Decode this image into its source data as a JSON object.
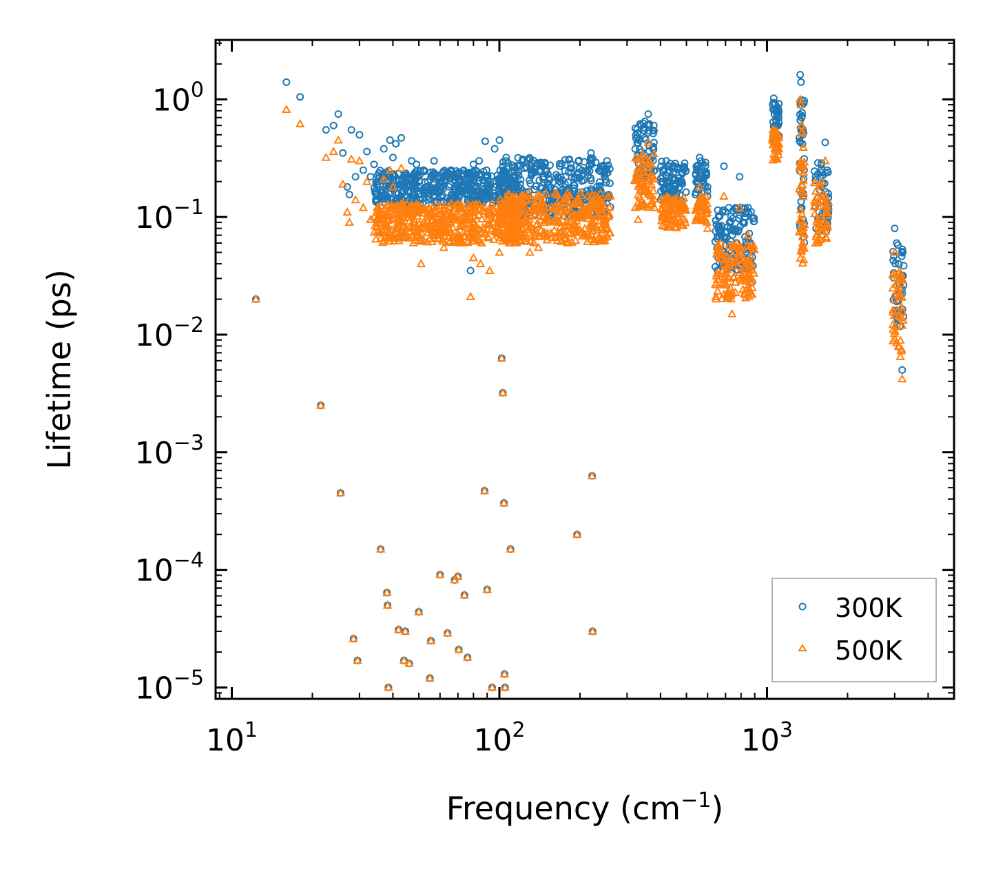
{
  "chart_data": {
    "type": "scatter",
    "xscale": "log",
    "yscale": "log",
    "xlabel": "Frequency (cm",
    "xlabel_sup": "−1",
    "xlabel_close": ")",
    "ylabel": "Lifetime (ps)",
    "xlim": [
      8.7,
      5000
    ],
    "ylim": [
      8e-06,
      3.2
    ],
    "x_ticks": [
      {
        "value": 10,
        "base": "10",
        "exp": "1"
      },
      {
        "value": 100,
        "base": "10",
        "exp": "2"
      },
      {
        "value": 1000,
        "base": "10",
        "exp": "3"
      }
    ],
    "y_ticks": [
      {
        "value": 1,
        "base": "10",
        "exp": "0"
      },
      {
        "value": 0.1,
        "base": "10",
        "exp": "−1"
      },
      {
        "value": 0.01,
        "base": "10",
        "exp": "−2"
      },
      {
        "value": 0.001,
        "base": "10",
        "exp": "−3"
      },
      {
        "value": 0.0001,
        "base": "10",
        "exp": "−4"
      },
      {
        "value": 1e-05,
        "base": "10",
        "exp": "−5"
      }
    ],
    "legend_position": "bottom-right",
    "series": [
      {
        "name": "300K",
        "marker": "circle",
        "color": "#1f77b4",
        "points": [
          [
            12.3,
            0.02
          ],
          [
            16,
            1.4
          ],
          [
            18,
            1.05
          ],
          [
            21.5,
            0.0025
          ],
          [
            22.5,
            0.55
          ],
          [
            24,
            0.6
          ],
          [
            25,
            0.75
          ],
          [
            25.5,
            0.00045
          ],
          [
            26,
            0.35
          ],
          [
            27,
            0.18
          ],
          [
            27.5,
            0.155
          ],
          [
            28,
            0.55
          ],
          [
            28.5,
            2.6e-05
          ],
          [
            29,
            0.22
          ],
          [
            29.5,
            1.7e-05
          ],
          [
            30,
            0.5
          ],
          [
            31,
            0.25
          ],
          [
            32,
            0.36
          ],
          [
            33,
            0.22
          ],
          [
            34,
            0.28
          ],
          [
            35,
            0.2
          ],
          [
            36,
            0.00015
          ],
          [
            36.5,
            0.17
          ],
          [
            37,
            0.38
          ],
          [
            38,
            6.4e-05
          ],
          [
            38.2,
            5e-05
          ],
          [
            38.5,
            1e-05
          ],
          [
            39,
            0.45
          ],
          [
            40,
            0.32
          ],
          [
            41,
            0.42
          ],
          [
            42,
            3.1e-05
          ],
          [
            43,
            0.47
          ],
          [
            44,
            1.7e-05
          ],
          [
            44.5,
            3e-05
          ],
          [
            46,
            1.6e-05
          ],
          [
            47,
            0.3
          ],
          [
            49,
            0.28
          ],
          [
            50,
            4.4e-05
          ],
          [
            52,
            0.25
          ],
          [
            55,
            1.2e-05
          ],
          [
            55.5,
            2.5e-05
          ],
          [
            57,
            0.3
          ],
          [
            60,
            9.1e-05
          ],
          [
            60.5,
            0.15
          ],
          [
            63,
            0.23
          ],
          [
            64,
            2.9e-05
          ],
          [
            66,
            0.25
          ],
          [
            68,
            8.2e-05
          ],
          [
            70,
            8.8e-05
          ],
          [
            70.5,
            2.1e-05
          ],
          [
            72,
            0.2
          ],
          [
            74,
            6.1e-05
          ],
          [
            76,
            1.8e-05
          ],
          [
            78,
            0.035
          ],
          [
            80,
            0.28
          ],
          [
            84,
            0.3
          ],
          [
            88,
            0.00047
          ],
          [
            88.5,
            0.44
          ],
          [
            90,
            6.8e-05
          ],
          [
            94,
            1e-05
          ],
          [
            96,
            0.38
          ],
          [
            100,
            0.45
          ],
          [
            102,
            0.0063
          ],
          [
            103,
            0.0032
          ],
          [
            104,
            0.00037
          ],
          [
            104.5,
            1.3e-05
          ],
          [
            105,
            1e-05
          ],
          [
            106,
            0.32
          ],
          [
            110,
            0.00015
          ],
          [
            130,
            0.12
          ],
          [
            150,
            0.25
          ],
          [
            195,
            0.0002
          ],
          [
            220,
            0.35
          ],
          [
            222,
            0.00063
          ],
          [
            223,
            3e-05
          ],
          [
            330,
            0.33
          ],
          [
            340,
            0.6
          ],
          [
            350,
            0.65
          ],
          [
            360,
            0.75
          ],
          [
            380,
            0.25
          ],
          [
            420,
            0.3
          ],
          [
            480,
            0.2
          ],
          [
            560,
            0.32
          ],
          [
            600,
            0.18
          ],
          [
            690,
            0.27
          ],
          [
            720,
            0.12
          ],
          [
            790,
            0.22
          ],
          [
            850,
            0.12
          ],
          [
            880,
            0.028
          ],
          [
            1050,
            0.9
          ],
          [
            1060,
            1.02
          ],
          [
            1100,
            0.6
          ],
          [
            1330,
            1.62
          ],
          [
            1340,
            1.4
          ],
          [
            1350,
            0.9
          ],
          [
            1360,
            0.5
          ],
          [
            1520,
            0.22
          ],
          [
            1600,
            0.18
          ],
          [
            1650,
            0.43
          ],
          [
            1680,
            0.25
          ],
          [
            3000,
            0.08
          ],
          [
            3050,
            0.06
          ],
          [
            3100,
            0.04
          ],
          [
            3150,
            0.025
          ],
          [
            3200,
            0.005
          ]
        ],
        "bands": [
          {
            "x": [
              34,
              115
            ],
            "y": [
              0.13,
              0.25
            ]
          },
          {
            "x": [
              100,
              260
            ],
            "y": [
              0.1,
              0.32
            ]
          },
          {
            "x": [
              320,
              380
            ],
            "y": [
              0.22,
              0.65
            ]
          },
          {
            "x": [
              400,
              500
            ],
            "y": [
              0.13,
              0.3
            ]
          },
          {
            "x": [
              540,
              600
            ],
            "y": [
              0.14,
              0.3
            ]
          },
          {
            "x": [
              640,
              900
            ],
            "y": [
              0.035,
              0.12
            ]
          },
          {
            "x": [
              1050,
              1110
            ],
            "y": [
              0.45,
              0.95
            ]
          },
          {
            "x": [
              1320,
              1380
            ],
            "y": [
              0.06,
              1.0
            ]
          },
          {
            "x": [
              1500,
              1700
            ],
            "y": [
              0.07,
              0.3
            ]
          },
          {
            "x": [
              2950,
              3250
            ],
            "y": [
              0.01,
              0.06
            ]
          }
        ]
      },
      {
        "name": "500K",
        "marker": "triangle",
        "color": "#ff7f0e",
        "points": [
          [
            12.3,
            0.02
          ],
          [
            16,
            0.82
          ],
          [
            18,
            0.62
          ],
          [
            21.5,
            0.0025
          ],
          [
            22.5,
            0.32
          ],
          [
            24,
            0.36
          ],
          [
            25,
            0.45
          ],
          [
            25.5,
            0.00045
          ],
          [
            26,
            0.19
          ],
          [
            27,
            0.11
          ],
          [
            27.5,
            0.09
          ],
          [
            28,
            0.31
          ],
          [
            28.5,
            2.6e-05
          ],
          [
            29,
            0.14
          ],
          [
            29.5,
            1.7e-05
          ],
          [
            30,
            0.3
          ],
          [
            31,
            0.12
          ],
          [
            32,
            0.2
          ],
          [
            33,
            0.095
          ],
          [
            34,
            0.1
          ],
          [
            35,
            0.12
          ],
          [
            36,
            0.00015
          ],
          [
            37,
            0.21
          ],
          [
            38,
            6.4e-05
          ],
          [
            38.2,
            5e-05
          ],
          [
            38.5,
            1e-05
          ],
          [
            39,
            0.25
          ],
          [
            40,
            0.18
          ],
          [
            42,
            3.1e-05
          ],
          [
            43,
            0.26
          ],
          [
            44,
            1.7e-05
          ],
          [
            44.5,
            3e-05
          ],
          [
            46,
            1.6e-05
          ],
          [
            47,
            0.12
          ],
          [
            49,
            0.07
          ],
          [
            50,
            4.4e-05
          ],
          [
            51,
            0.04
          ],
          [
            55,
            1.2e-05
          ],
          [
            55.5,
            2.5e-05
          ],
          [
            57,
            0.07
          ],
          [
            60,
            9.1e-05
          ],
          [
            62,
            0.055
          ],
          [
            64,
            2.9e-05
          ],
          [
            68,
            8.2e-05
          ],
          [
            70,
            8.8e-05
          ],
          [
            70.5,
            2.1e-05
          ],
          [
            74,
            6.1e-05
          ],
          [
            76,
            1.8e-05
          ],
          [
            78,
            0.021
          ],
          [
            80,
            0.045
          ],
          [
            85,
            0.04
          ],
          [
            88,
            0.00047
          ],
          [
            90,
            6.8e-05
          ],
          [
            92,
            0.035
          ],
          [
            94,
            1e-05
          ],
          [
            100,
            0.05
          ],
          [
            102,
            0.0063
          ],
          [
            103,
            0.0032
          ],
          [
            104,
            0.00037
          ],
          [
            104.5,
            1.3e-05
          ],
          [
            105,
            1e-05
          ],
          [
            110,
            0.00015
          ],
          [
            130,
            0.05
          ],
          [
            140,
            0.055
          ],
          [
            150,
            0.07
          ],
          [
            170,
            0.075
          ],
          [
            195,
            0.0002
          ],
          [
            222,
            0.00063
          ],
          [
            223,
            3e-05
          ],
          [
            330,
            0.095
          ],
          [
            340,
            0.2
          ],
          [
            360,
            0.43
          ],
          [
            380,
            0.12
          ],
          [
            420,
            0.12
          ],
          [
            480,
            0.085
          ],
          [
            560,
            0.18
          ],
          [
            600,
            0.08
          ],
          [
            690,
            0.15
          ],
          [
            720,
            0.04
          ],
          [
            740,
            0.015
          ],
          [
            790,
            0.12
          ],
          [
            850,
            0.07
          ],
          [
            880,
            0.022
          ],
          [
            1050,
            0.45
          ],
          [
            1060,
            0.55
          ],
          [
            1100,
            0.38
          ],
          [
            1330,
            1.0
          ],
          [
            1340,
            0.9
          ],
          [
            1350,
            0.6
          ],
          [
            1360,
            0.06
          ],
          [
            1520,
            0.06
          ],
          [
            1600,
            0.08
          ],
          [
            1650,
            0.3
          ],
          [
            1680,
            0.12
          ],
          [
            3000,
            0.05
          ],
          [
            3050,
            0.03
          ],
          [
            3100,
            0.008
          ],
          [
            3150,
            0.0065
          ],
          [
            3200,
            0.0042
          ]
        ],
        "bands": [
          {
            "x": [
              34,
              120
            ],
            "y": [
              0.06,
              0.13
            ]
          },
          {
            "x": [
              100,
              260
            ],
            "y": [
              0.06,
              0.16
            ]
          },
          {
            "x": [
              320,
              380
            ],
            "y": [
              0.12,
              0.35
            ]
          },
          {
            "x": [
              400,
              500
            ],
            "y": [
              0.08,
              0.15
            ]
          },
          {
            "x": [
              540,
              600
            ],
            "y": [
              0.09,
              0.15
            ]
          },
          {
            "x": [
              640,
              900
            ],
            "y": [
              0.02,
              0.06
            ]
          },
          {
            "x": [
              1050,
              1110
            ],
            "y": [
              0.3,
              0.55
            ]
          },
          {
            "x": [
              1320,
              1380
            ],
            "y": [
              0.04,
              0.6
            ]
          },
          {
            "x": [
              1500,
              1700
            ],
            "y": [
              0.06,
              0.2
            ]
          },
          {
            "x": [
              2950,
              3250
            ],
            "y": [
              0.007,
              0.035
            ]
          }
        ]
      }
    ]
  }
}
